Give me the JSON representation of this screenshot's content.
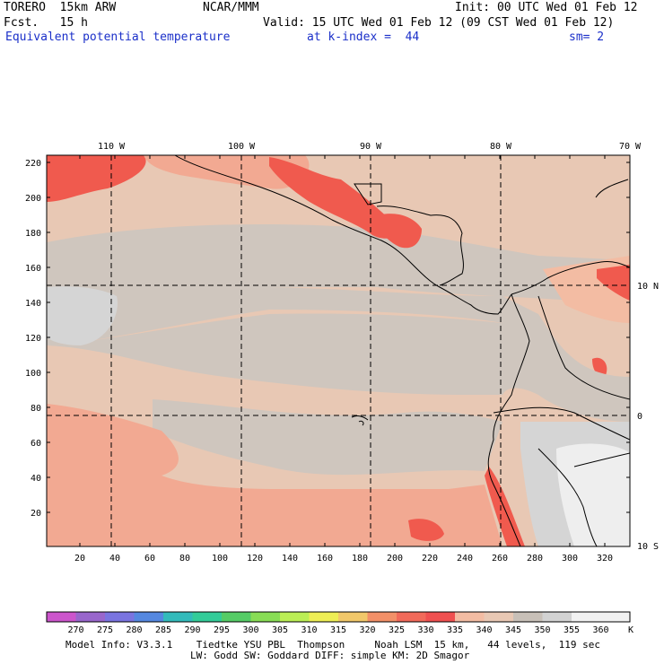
{
  "header": {
    "model": "TORERO  15km ARW",
    "center": "NCAR/MMM",
    "init": "Init: 00 UTC Wed 01 Feb 12",
    "fcst": "Fcst.   15 h",
    "valid": "Valid: 15 UTC Wed 01 Feb 12 (09 CST Wed 01 Feb 12)",
    "field": "Equivalent potential temperature",
    "level": "at k-index =  44",
    "smooth": "sm= 2"
  },
  "axes": {
    "x_ticks": [
      "20",
      "40",
      "60",
      "80",
      "100",
      "120",
      "140",
      "160",
      "180",
      "200",
      "220",
      "240",
      "260",
      "280",
      "300",
      "320"
    ],
    "y_ticks": [
      "20",
      "40",
      "60",
      "80",
      "100",
      "120",
      "140",
      "160",
      "180",
      "200",
      "220"
    ],
    "lon_labels": [
      "110 W",
      "100 W",
      "90 W",
      "80 W",
      "70 W"
    ],
    "lat_labels": [
      "10 N",
      "0",
      "10 S"
    ]
  },
  "legend": {
    "values": [
      "270",
      "275",
      "280",
      "285",
      "290",
      "295",
      "300",
      "305",
      "310",
      "315",
      "320",
      "325",
      "330",
      "335",
      "340",
      "345",
      "350",
      "355",
      "360"
    ],
    "unit": "K",
    "colors": [
      "#cc55cc",
      "#9966cc",
      "#7a74e0",
      "#5588e0",
      "#33bbbb",
      "#33cc99",
      "#55cc66",
      "#88dd55",
      "#bbee55",
      "#eeee55",
      "#f2c86a",
      "#f39068",
      "#f26a5a",
      "#f05050",
      "#f3bca3",
      "#e8c8b4",
      "#c8c0b8",
      "#d2d2d2",
      "#f2f2f2"
    ]
  },
  "footer": {
    "line1": "Model Info: V3.3.1    Tiedtke YSU PBL  Thompson     Noah LSM  15 km,   44 levels,  119 sec",
    "line2": "LW: Godd SW: Goddard DIFF: simple KM: 2D Smagor"
  }
}
